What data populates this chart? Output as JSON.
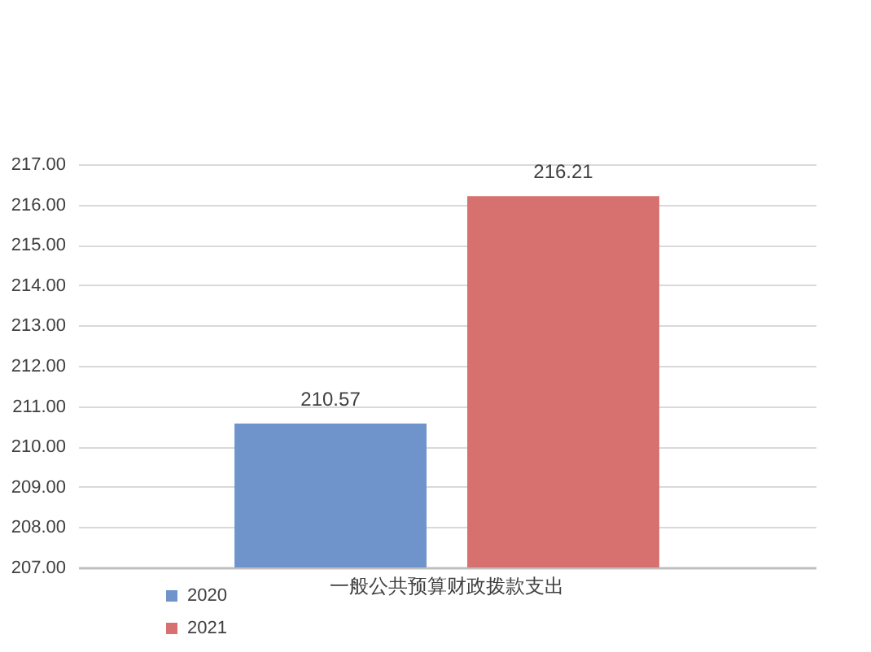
{
  "chart_data": {
    "type": "bar",
    "categories": [
      "一般公共预算财政拨款支出"
    ],
    "series": [
      {
        "name": "2020",
        "color": "#6f94cc",
        "values": [
          210.57
        ]
      },
      {
        "name": "2021",
        "color": "#d6716f",
        "values": [
          216.21
        ]
      }
    ],
    "ylim": [
      207,
      217
    ],
    "yticks": [
      {
        "value": 207,
        "label": "207.00"
      },
      {
        "value": 208,
        "label": "208.00"
      },
      {
        "value": 209,
        "label": "209.00"
      },
      {
        "value": 210,
        "label": "210.00"
      },
      {
        "value": 211,
        "label": "211.00"
      },
      {
        "value": 212,
        "label": "212.00"
      },
      {
        "value": 213,
        "label": "213.00"
      },
      {
        "value": 214,
        "label": "214.00"
      },
      {
        "value": 215,
        "label": "215.00"
      },
      {
        "value": 216,
        "label": "216.00"
      },
      {
        "value": 217,
        "label": "217.00"
      }
    ],
    "grid": "y",
    "legend": "bottom left",
    "data_labels": true
  }
}
